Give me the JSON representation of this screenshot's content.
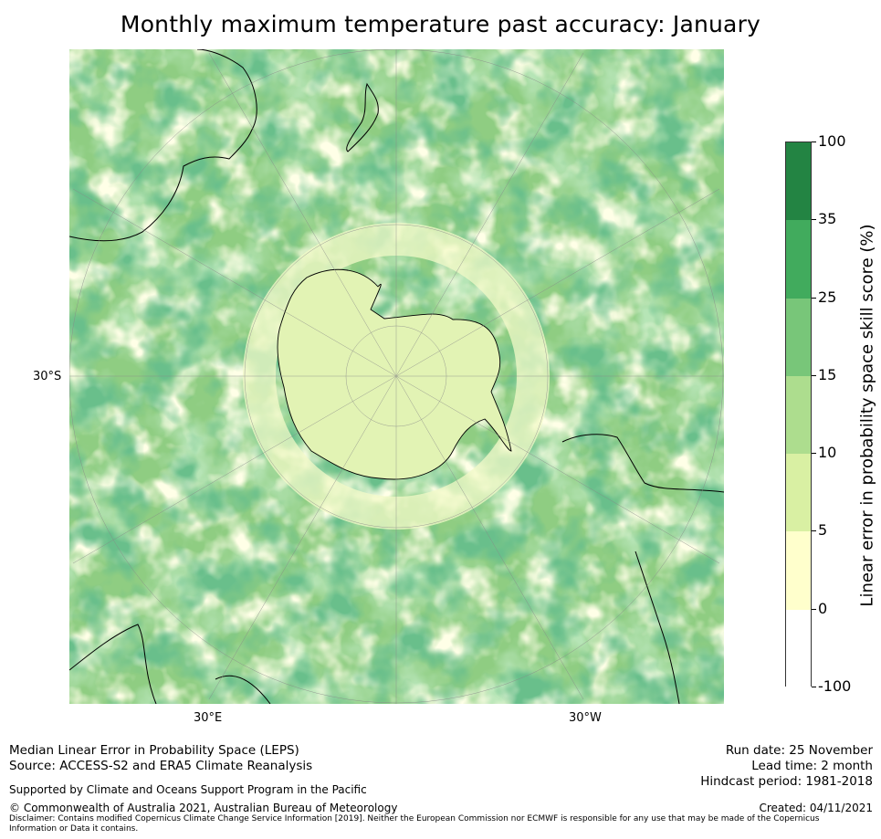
{
  "title": "Monthly maximum temperature past accuracy: January",
  "map": {
    "projection": "south-polar stereographic",
    "lat_label": "30°S",
    "lon_labels": [
      "30°E",
      "30°W"
    ]
  },
  "colorbar": {
    "label": "Linear error in probability space skill score (%)",
    "ticks": [
      "100",
      "35",
      "25",
      "15",
      "10",
      "5",
      "0",
      "-100"
    ],
    "bins": [
      {
        "range": "-100 to 0",
        "color": "#ffffff"
      },
      {
        "range": "0 to 5",
        "color": "#ffffcc"
      },
      {
        "range": "5 to 10",
        "color": "#d9f0a3"
      },
      {
        "range": "10 to 15",
        "color": "#addd8e"
      },
      {
        "range": "15 to 25",
        "color": "#78c679"
      },
      {
        "range": "25 to 35",
        "color": "#41ab5d"
      },
      {
        "range": "35 to 100",
        "color": "#238443"
      }
    ]
  },
  "footer": {
    "left": {
      "line1": "Median Linear Error in Probability Space (LEPS)",
      "line2": "Source: ACCESS-S2 and ERA5 Climate Reanalysis",
      "support": "Supported by Climate and Oceans Support Program in the Pacific",
      "copyright": "© Commonwealth of Australia 2021, Australian Bureau of Meteorology",
      "disclaimer": "Disclaimer: Contains modified Copernicus Climate Change Service Information [2019]. Neither the European Commission nor ECMWF is responsible for any use that may be made of the Copernicus Information or Data it contains."
    },
    "right": {
      "run_date": "Run date: 25 November",
      "lead_time": "Lead time: 2 month",
      "hindcast": "Hindcast period: 1981-2018",
      "created": "Created: 04/11/2021"
    }
  }
}
